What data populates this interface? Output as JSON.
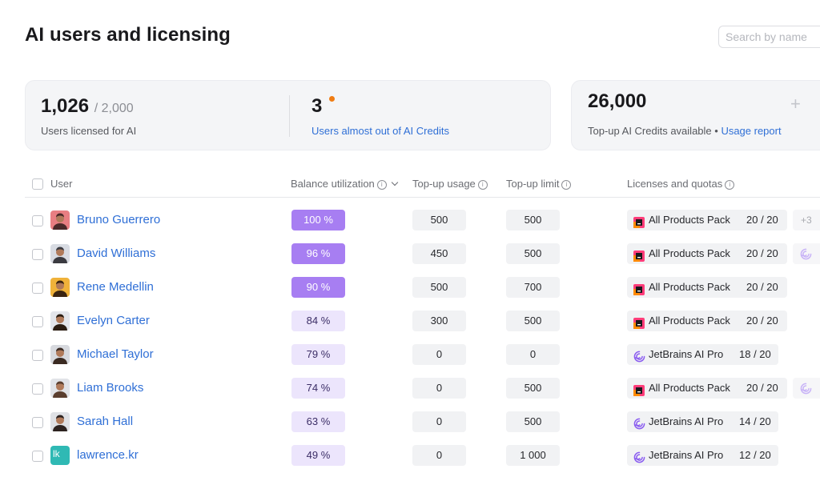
{
  "page": {
    "title": "AI users and licensing"
  },
  "search": {
    "placeholder": "Search by name"
  },
  "summary": {
    "licensed_count": "1,026",
    "licensed_total": "/ 2,000",
    "licensed_label": "Users licensed for AI",
    "almost_out_count": "3",
    "almost_out_label": "Users almost out of AI Credits",
    "topup_count": "26,000",
    "topup_label": "Top-up AI Credits available •",
    "usage_report": "Usage report"
  },
  "columns": {
    "user": "User",
    "balance": "Balance utilization",
    "topup_usage": "Top-up usage",
    "topup_limit": "Top-up limit",
    "licenses": "Licenses and quotas"
  },
  "colors": {
    "accent": "#a77ef2",
    "link": "#2f6fd6",
    "alert_dot": "#f07c12"
  },
  "rows": [
    {
      "name": "Bruno Guerrero",
      "util": "100 %",
      "usage": "500",
      "limit": "500",
      "license": "All Products Pack",
      "license_icon": "all-products-pack-icon",
      "quota": "20 / 20",
      "extra": "+3"
    },
    {
      "name": "David Williams",
      "util": "96 %",
      "usage": "450",
      "limit": "500",
      "license": "All Products Pack",
      "license_icon": "all-products-pack-icon",
      "quota": "20 / 20",
      "extra_icon": "jetbrains-ai-icon"
    },
    {
      "name": "Rene Medellin",
      "util": "90 %",
      "usage": "500",
      "limit": "700",
      "license": "All Products Pack",
      "license_icon": "all-products-pack-icon",
      "quota": "20 / 20"
    },
    {
      "name": "Evelyn Carter",
      "util": "84 %",
      "usage": "300",
      "limit": "500",
      "license": "All Products Pack",
      "license_icon": "all-products-pack-icon",
      "quota": "20 / 20"
    },
    {
      "name": "Michael Taylor",
      "util": "79 %",
      "usage": "0",
      "limit": "0",
      "license": "JetBrains AI Pro",
      "license_icon": "jetbrains-ai-icon",
      "quota": "18 / 20"
    },
    {
      "name": "Liam Brooks",
      "util": "74 %",
      "usage": "0",
      "limit": "500",
      "license": "All Products Pack",
      "license_icon": "all-products-pack-icon",
      "quota": "20 / 20",
      "extra_icon": "jetbrains-ai-icon"
    },
    {
      "name": "Sarah Hall",
      "util": "63 %",
      "usage": "0",
      "limit": "500",
      "license": "JetBrains AI Pro",
      "license_icon": "jetbrains-ai-icon",
      "quota": "14 / 20"
    },
    {
      "name": "lawrence.kr",
      "util": "49 %",
      "usage": "0",
      "limit": "1 000",
      "license": "JetBrains AI Pro",
      "license_icon": "jetbrains-ai-icon",
      "quota": "12 / 20",
      "avatar_initials": "lk"
    }
  ]
}
